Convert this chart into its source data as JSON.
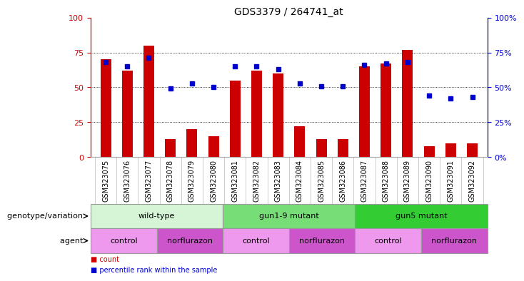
{
  "title": "GDS3379 / 264741_at",
  "samples": [
    "GSM323075",
    "GSM323076",
    "GSM323077",
    "GSM323078",
    "GSM323079",
    "GSM323080",
    "GSM323081",
    "GSM323082",
    "GSM323083",
    "GSM323084",
    "GSM323085",
    "GSM323086",
    "GSM323087",
    "GSM323088",
    "GSM323089",
    "GSM323090",
    "GSM323091",
    "GSM323092"
  ],
  "counts": [
    70,
    62,
    80,
    13,
    20,
    15,
    55,
    62,
    60,
    22,
    13,
    13,
    65,
    67,
    77,
    8,
    10,
    10
  ],
  "percentiles": [
    68,
    65,
    71,
    49,
    53,
    50,
    65,
    65,
    63,
    53,
    51,
    51,
    66,
    67,
    68,
    44,
    42,
    43
  ],
  "bar_color": "#cc0000",
  "dot_color": "#0000cc",
  "ylim_left": [
    0,
    100
  ],
  "ylim_right": [
    0,
    100
  ],
  "yticks_left": [
    0,
    25,
    50,
    75,
    100
  ],
  "yticks_right": [
    0,
    25,
    50,
    75,
    100
  ],
  "grid_lines": [
    25,
    50,
    75
  ],
  "genotype_groups": [
    {
      "label": "wild-type",
      "start": 0,
      "end": 6,
      "color": "#d6f5d6",
      "border": "#999999"
    },
    {
      "label": "gun1-9 mutant",
      "start": 6,
      "end": 12,
      "color": "#77dd77",
      "border": "#999999"
    },
    {
      "label": "gun5 mutant",
      "start": 12,
      "end": 18,
      "color": "#33cc33",
      "border": "#999999"
    }
  ],
  "agent_groups": [
    {
      "label": "control",
      "start": 0,
      "end": 3,
      "color": "#ee99ee",
      "border": "#999999"
    },
    {
      "label": "norflurazon",
      "start": 3,
      "end": 6,
      "color": "#cc55cc",
      "border": "#999999"
    },
    {
      "label": "control",
      "start": 6,
      "end": 9,
      "color": "#ee99ee",
      "border": "#999999"
    },
    {
      "label": "norflurazon",
      "start": 9,
      "end": 12,
      "color": "#cc55cc",
      "border": "#999999"
    },
    {
      "label": "control",
      "start": 12,
      "end": 15,
      "color": "#ee99ee",
      "border": "#999999"
    },
    {
      "label": "norflurazon",
      "start": 15,
      "end": 18,
      "color": "#cc55cc",
      "border": "#999999"
    }
  ],
  "genotype_label": "genotype/variation",
  "agent_label": "agent",
  "legend_count_label": "count",
  "legend_pct_label": "percentile rank within the sample",
  "bar_width": 0.5,
  "tick_label_fontsize": 7,
  "title_fontsize": 10,
  "annotation_fontsize": 8,
  "axis_color_left": "#cc0000",
  "axis_color_right": "#0000cc",
  "xtick_bg_color": "#dddddd"
}
